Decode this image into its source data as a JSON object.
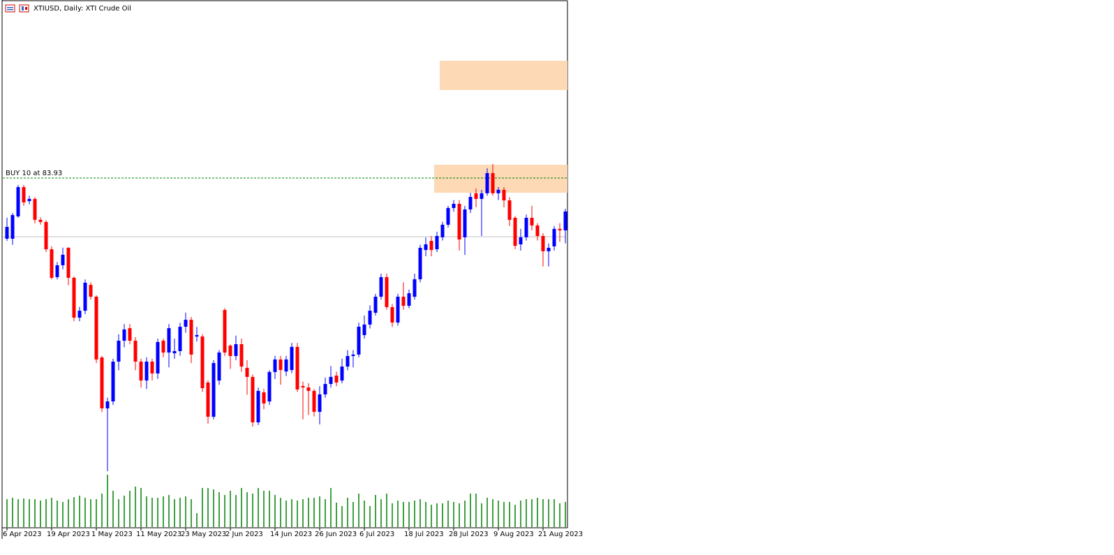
{
  "chart_data": {
    "type": "candlestick",
    "title": "XTIUSD, Daily:  XTI Crude Oil",
    "ylim": [
      59.73,
      96.27
    ],
    "bull_color": "#0000ff",
    "bear_color": "#ff0000",
    "volume_color": "#008000",
    "categories": [
      "6 Apr 2023",
      null,
      null,
      null,
      null,
      null,
      null,
      null,
      "19 Apr 2023",
      null,
      null,
      null,
      null,
      null,
      null,
      null,
      "1 May 2023",
      null,
      null,
      null,
      null,
      null,
      null,
      null,
      "11 May 2023",
      null,
      null,
      null,
      null,
      null,
      null,
      null,
      "23 May 2023",
      null,
      null,
      null,
      null,
      null,
      null,
      null,
      "2 Jun 2023",
      null,
      null,
      null,
      null,
      null,
      null,
      null,
      "14 Jun 2023",
      null,
      null,
      null,
      null,
      null,
      null,
      null,
      "26 Jun 2023",
      null,
      null,
      null,
      null,
      null,
      null,
      null,
      "6 Jul 2023",
      null,
      null,
      null,
      null,
      null,
      null,
      null,
      "18 Jul 2023",
      null,
      null,
      null,
      null,
      null,
      null,
      null,
      "28 Jul 2023",
      null,
      null,
      null,
      null,
      null,
      null,
      null,
      "9 Aug 2023",
      null,
      null,
      null,
      null,
      null,
      null,
      null,
      "21 Aug 2023",
      null,
      null,
      null,
      null
    ],
    "ohlc": [
      [
        79.72,
        81.17,
        79.57,
        80.54
      ],
      [
        79.72,
        81.5,
        79.3,
        81.36
      ],
      [
        81.27,
        83.45,
        81.17,
        83.3
      ],
      [
        83.3,
        83.45,
        82.0,
        82.24
      ],
      [
        82.33,
        82.7,
        82.1,
        82.48
      ],
      [
        82.48,
        82.6,
        80.78,
        81.03
      ],
      [
        81.03,
        81.2,
        80.7,
        80.88
      ],
      [
        80.88,
        81.0,
        78.8,
        78.99
      ],
      [
        78.99,
        79.2,
        76.9,
        77.01
      ],
      [
        77.06,
        78.1,
        76.9,
        77.88
      ],
      [
        77.88,
        79.1,
        77.6,
        78.61
      ],
      [
        79.09,
        79.15,
        76.5,
        77.01
      ],
      [
        77.01,
        77.1,
        74.0,
        74.25
      ],
      [
        74.25,
        75.0,
        74.0,
        74.73
      ],
      [
        74.73,
        76.9,
        74.5,
        76.67
      ],
      [
        76.52,
        76.7,
        75.5,
        75.7
      ],
      [
        75.7,
        75.8,
        71.1,
        71.35
      ],
      [
        71.49,
        71.6,
        67.7,
        67.96
      ],
      [
        67.96,
        68.7,
        63.6,
        68.44
      ],
      [
        68.44,
        71.4,
        68.2,
        71.2
      ],
      [
        71.2,
        73.1,
        70.6,
        72.65
      ],
      [
        72.65,
        73.8,
        72.2,
        73.43
      ],
      [
        73.52,
        73.8,
        72.4,
        72.65
      ],
      [
        72.65,
        72.9,
        70.6,
        71.2
      ],
      [
        71.2,
        71.4,
        69.4,
        69.89
      ],
      [
        69.89,
        71.5,
        69.3,
        71.2
      ],
      [
        71.2,
        71.4,
        69.9,
        70.38
      ],
      [
        70.38,
        72.8,
        70.0,
        72.56
      ],
      [
        72.65,
        72.8,
        71.5,
        71.83
      ],
      [
        71.83,
        73.8,
        70.8,
        73.52
      ],
      [
        71.78,
        72.8,
        71.4,
        71.93
      ],
      [
        71.93,
        73.9,
        71.6,
        73.62
      ],
      [
        73.62,
        74.6,
        73.2,
        74.1
      ],
      [
        74.1,
        74.3,
        71.1,
        71.69
      ],
      [
        72.94,
        73.6,
        72.6,
        73.04
      ],
      [
        72.94,
        73.1,
        69.1,
        69.36
      ],
      [
        69.75,
        69.9,
        66.9,
        67.38
      ],
      [
        67.38,
        71.3,
        67.2,
        71.1
      ],
      [
        69.89,
        72.0,
        69.6,
        71.83
      ],
      [
        74.78,
        74.9,
        71.6,
        71.83
      ],
      [
        72.31,
        72.4,
        70.7,
        71.59
      ],
      [
        71.59,
        73.0,
        71.3,
        72.41
      ],
      [
        72.41,
        72.8,
        70.5,
        70.86
      ],
      [
        70.77,
        71.3,
        68.9,
        70.14
      ],
      [
        70.14,
        70.3,
        66.7,
        66.99
      ],
      [
        66.99,
        69.4,
        66.8,
        69.17
      ],
      [
        69.07,
        69.3,
        67.9,
        68.3
      ],
      [
        68.44,
        70.6,
        68.2,
        70.48
      ],
      [
        70.48,
        71.6,
        70.0,
        71.35
      ],
      [
        71.35,
        71.6,
        69.6,
        70.62
      ],
      [
        70.52,
        71.6,
        70.2,
        71.35
      ],
      [
        70.62,
        72.5,
        70.4,
        72.22
      ],
      [
        72.22,
        72.5,
        69.1,
        69.27
      ],
      [
        69.51,
        69.8,
        67.2,
        69.41
      ],
      [
        69.41,
        69.7,
        67.5,
        69.17
      ],
      [
        69.17,
        69.3,
        67.4,
        67.72
      ],
      [
        67.72,
        69.5,
        66.85,
        68.93
      ],
      [
        68.93,
        70.1,
        68.7,
        69.65
      ],
      [
        69.65,
        70.9,
        69.4,
        70.14
      ],
      [
        70.23,
        70.5,
        69.5,
        69.75
      ],
      [
        69.89,
        71.4,
        69.7,
        70.86
      ],
      [
        70.86,
        72.0,
        70.6,
        71.59
      ],
      [
        71.59,
        72.0,
        70.8,
        71.69
      ],
      [
        71.69,
        73.9,
        71.5,
        73.62
      ],
      [
        73.04,
        74.4,
        72.8,
        73.77
      ],
      [
        73.77,
        75.1,
        73.5,
        74.73
      ],
      [
        74.59,
        75.9,
        74.4,
        75.7
      ],
      [
        75.7,
        77.3,
        75.5,
        77.06
      ],
      [
        77.06,
        77.3,
        74.8,
        74.98
      ],
      [
        74.98,
        75.2,
        73.6,
        73.91
      ],
      [
        73.91,
        75.9,
        73.7,
        75.7
      ],
      [
        75.7,
        76.7,
        74.8,
        75.07
      ],
      [
        75.07,
        76.2,
        74.9,
        75.94
      ],
      [
        75.7,
        77.3,
        75.5,
        76.91
      ],
      [
        76.91,
        79.3,
        76.7,
        79.09
      ],
      [
        78.94,
        79.8,
        78.5,
        79.33
      ],
      [
        79.57,
        79.9,
        78.5,
        78.94
      ],
      [
        78.99,
        80.2,
        78.8,
        79.91
      ],
      [
        79.82,
        80.9,
        79.6,
        80.69
      ],
      [
        80.69,
        82.0,
        80.5,
        81.85
      ],
      [
        81.85,
        82.4,
        81.6,
        82.14
      ],
      [
        82.14,
        82.4,
        78.9,
        79.67
      ],
      [
        79.82,
        82.0,
        78.6,
        81.75
      ],
      [
        81.75,
        82.9,
        81.5,
        82.62
      ],
      [
        82.87,
        83.2,
        81.9,
        82.48
      ],
      [
        82.48,
        83.1,
        79.91,
        82.87
      ],
      [
        82.87,
        84.6,
        82.7,
        84.27
      ],
      [
        84.27,
        84.9,
        82.7,
        82.87
      ],
      [
        82.87,
        83.3,
        82.4,
        83.11
      ],
      [
        83.11,
        83.3,
        81.9,
        82.38
      ],
      [
        82.38,
        82.6,
        80.6,
        81.03
      ],
      [
        81.17,
        81.3,
        79.0,
        79.23
      ],
      [
        79.33,
        80.4,
        78.9,
        79.82
      ],
      [
        79.82,
        81.4,
        79.6,
        81.17
      ],
      [
        81.17,
        82.0,
        80.3,
        80.64
      ],
      [
        80.64,
        80.8,
        79.6,
        79.91
      ],
      [
        79.91,
        80.1,
        77.8,
        78.85
      ],
      [
        78.85,
        79.4,
        77.8,
        79.09
      ],
      [
        79.19,
        80.6,
        78.9,
        80.4
      ],
      [
        80.4,
        80.8,
        79.5,
        80.3
      ],
      [
        80.3,
        81.8,
        79.4,
        81.61
      ]
    ],
    "volumes": [
      40,
      42,
      40,
      41,
      40,
      40,
      38,
      40,
      42,
      38,
      36,
      40,
      43,
      45,
      42,
      40,
      40,
      48,
      75,
      52,
      40,
      45,
      52,
      58,
      56,
      44,
      42,
      42,
      44,
      46,
      40,
      42,
      44,
      40,
      20,
      56,
      56,
      54,
      50,
      46,
      52,
      46,
      56,
      50,
      48,
      56,
      52,
      52,
      46,
      42,
      38,
      40,
      38,
      40,
      42,
      42,
      44,
      40,
      56,
      35,
      30,
      42,
      36,
      48,
      38,
      30,
      46,
      40,
      48,
      34,
      38,
      36,
      36,
      38,
      40,
      36,
      32,
      34,
      34,
      38,
      36,
      34,
      38,
      48,
      48,
      34,
      42,
      40,
      38,
      36,
      36,
      32,
      38,
      40,
      40,
      42,
      40,
      40,
      40,
      34,
      36
    ],
    "order_line": {
      "label": "BUY 10 at 83.93",
      "value": 83.93,
      "color": "#008000"
    },
    "price_line": {
      "value": 79.86,
      "color": "#c0c0c0"
    },
    "zones": [
      {
        "start": 78,
        "top": 92.06,
        "bottom": 90.03,
        "color": "#fdd9b5"
      },
      {
        "start": 77,
        "top": 84.85,
        "bottom": 82.91,
        "color": "#fdd9b5"
      }
    ]
  }
}
